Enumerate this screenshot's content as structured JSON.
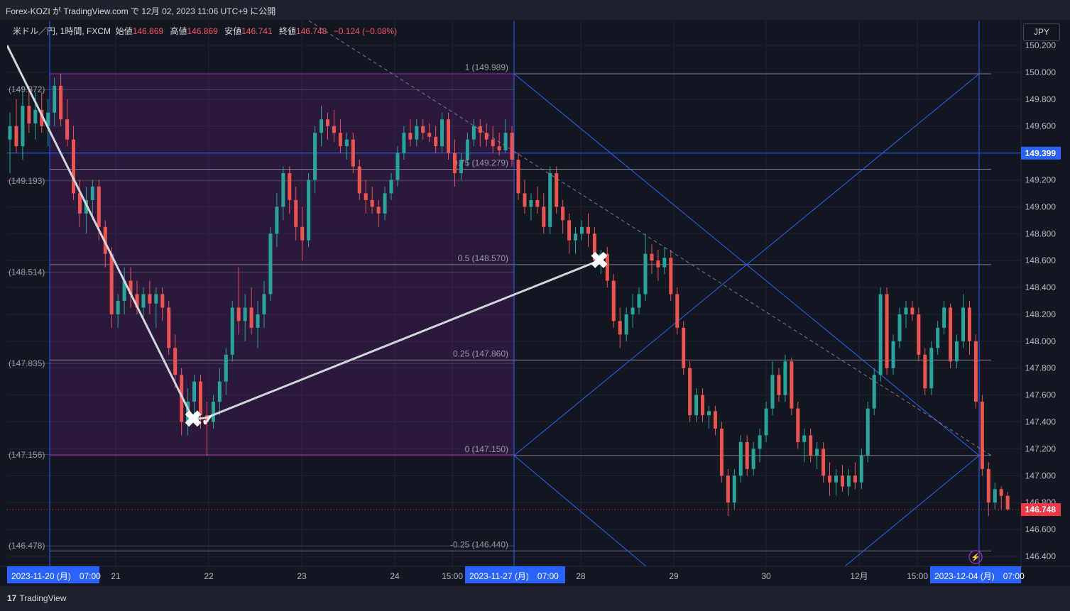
{
  "header": {
    "text": "Forex-KOZI が TradingView.com で 12月 02, 2023 11:06 UTC+9 に公開"
  },
  "legend": {
    "symbol": "米ドル／円, 1時間, FXCM",
    "open_label": "始値",
    "open": "146.869",
    "high_label": "高値",
    "high": "146.869",
    "low_label": "安値",
    "low": "146.741",
    "close_label": "終値",
    "close": "146.748",
    "change": "−0.124 (−0.08%)"
  },
  "currency_button": "JPY",
  "footer": {
    "logo_text": "TradingView"
  },
  "chart_data": {
    "type": "candlestick",
    "symbol": "米ドル／円",
    "interval": "1時間",
    "source": "FXCM",
    "y_axis": {
      "min": 146.4,
      "max": 150.2,
      "ticks": [
        "150.200",
        "150.000",
        "149.800",
        "149.600",
        "149.400",
        "149.200",
        "149.000",
        "148.800",
        "148.600",
        "148.400",
        "148.200",
        "148.000",
        "147.800",
        "147.600",
        "147.400",
        "147.200",
        "147.000",
        "146.800",
        "146.600",
        "146.400"
      ]
    },
    "x_axis": {
      "ticks": [
        "21",
        "22",
        "23",
        "24",
        "15:00",
        "28",
        "29",
        "30",
        "12月",
        "15:00"
      ],
      "highlighted": [
        "2023-11-20 (月)　07:00",
        "2023-11-27 (月)　07:00",
        "2023-12-04 (月)　07:00"
      ]
    },
    "price_tags": [
      {
        "value": 149.399,
        "label": "149.399",
        "color": "#2962ff"
      },
      {
        "value": 146.748,
        "label": "146.748",
        "color": "#f23645"
      }
    ],
    "fib_levels": [
      {
        "ratio": "1",
        "value": 149.989,
        "label": "1 (149.989)"
      },
      {
        "ratio": "0.75",
        "value": 149.279,
        "label": "0.75 (149.279)"
      },
      {
        "ratio": "0.5",
        "value": 148.57,
        "label": "0.5 (148.570)"
      },
      {
        "ratio": "0.25",
        "value": 147.86,
        "label": "0.25 (147.860)"
      },
      {
        "ratio": "0",
        "value": 147.15,
        "label": "0 (147.150)"
      },
      {
        "ratio": "-0.25",
        "value": 146.44,
        "label": "-0.25 (146.440)"
      }
    ],
    "left_levels": [
      {
        "value": 149.872,
        "label": "(149.872)"
      },
      {
        "value": 149.193,
        "label": "(149.193)"
      },
      {
        "value": 148.514,
        "label": "(148.514)"
      },
      {
        "value": 147.835,
        "label": "(147.835)"
      },
      {
        "value": 147.156,
        "label": "(147.156)"
      },
      {
        "value": 146.478,
        "label": "(146.478)"
      }
    ],
    "gann_box": {
      "top": 149.989,
      "bottom": 147.15
    },
    "markers": [
      {
        "symbol": "✖",
        "price": 147.42
      },
      {
        "symbol": "✓",
        "price": 147.43
      },
      {
        "symbol": "✖",
        "price": 148.6
      }
    ],
    "colors": {
      "up": "#26a69a",
      "down": "#ef5350",
      "box": "#9c27b0",
      "gann": "#2962ff",
      "bg": "#131722"
    },
    "candles": [
      {
        "o": 149.5,
        "h": 149.7,
        "l": 149.25,
        "c": 149.6
      },
      {
        "o": 149.6,
        "h": 149.8,
        "l": 149.4,
        "c": 149.45
      },
      {
        "o": 149.45,
        "h": 149.9,
        "l": 149.35,
        "c": 149.75
      },
      {
        "o": 149.75,
        "h": 149.9,
        "l": 149.55,
        "c": 149.62
      },
      {
        "o": 149.62,
        "h": 149.85,
        "l": 149.5,
        "c": 149.72
      },
      {
        "o": 149.72,
        "h": 149.85,
        "l": 149.55,
        "c": 149.6
      },
      {
        "o": 149.6,
        "h": 149.8,
        "l": 149.45,
        "c": 149.7
      },
      {
        "o": 149.7,
        "h": 149.96,
        "l": 149.6,
        "c": 149.9
      },
      {
        "o": 149.9,
        "h": 149.99,
        "l": 149.6,
        "c": 149.65
      },
      {
        "o": 149.65,
        "h": 149.8,
        "l": 149.45,
        "c": 149.5
      },
      {
        "o": 149.5,
        "h": 149.6,
        "l": 149.05,
        "c": 149.1
      },
      {
        "o": 149.1,
        "h": 149.2,
        "l": 148.85,
        "c": 148.95
      },
      {
        "o": 148.95,
        "h": 149.15,
        "l": 148.8,
        "c": 149.05
      },
      {
        "o": 149.05,
        "h": 149.2,
        "l": 148.9,
        "c": 149.15
      },
      {
        "o": 149.15,
        "h": 149.2,
        "l": 148.75,
        "c": 148.85
      },
      {
        "o": 148.85,
        "h": 148.9,
        "l": 148.55,
        "c": 148.65
      },
      {
        "o": 148.65,
        "h": 148.7,
        "l": 148.1,
        "c": 148.2
      },
      {
        "o": 148.2,
        "h": 148.35,
        "l": 148.1,
        "c": 148.3
      },
      {
        "o": 148.3,
        "h": 148.55,
        "l": 148.2,
        "c": 148.45
      },
      {
        "o": 148.45,
        "h": 148.55,
        "l": 148.25,
        "c": 148.35
      },
      {
        "o": 148.35,
        "h": 148.45,
        "l": 148.2,
        "c": 148.25
      },
      {
        "o": 148.25,
        "h": 148.4,
        "l": 148.15,
        "c": 148.35
      },
      {
        "o": 148.35,
        "h": 148.45,
        "l": 148.2,
        "c": 148.28
      },
      {
        "o": 148.28,
        "h": 148.4,
        "l": 148.1,
        "c": 148.35
      },
      {
        "o": 148.35,
        "h": 148.4,
        "l": 148.15,
        "c": 148.25
      },
      {
        "o": 148.25,
        "h": 148.3,
        "l": 147.9,
        "c": 147.95
      },
      {
        "o": 147.95,
        "h": 148.05,
        "l": 147.65,
        "c": 147.75
      },
      {
        "o": 147.75,
        "h": 147.8,
        "l": 147.3,
        "c": 147.4
      },
      {
        "o": 147.4,
        "h": 147.65,
        "l": 147.3,
        "c": 147.55
      },
      {
        "o": 147.55,
        "h": 147.75,
        "l": 147.4,
        "c": 147.7
      },
      {
        "o": 147.7,
        "h": 147.75,
        "l": 147.35,
        "c": 147.45
      },
      {
        "o": 147.45,
        "h": 147.55,
        "l": 147.15,
        "c": 147.4
      },
      {
        "o": 147.4,
        "h": 147.6,
        "l": 147.35,
        "c": 147.55
      },
      {
        "o": 147.55,
        "h": 147.8,
        "l": 147.45,
        "c": 147.7
      },
      {
        "o": 147.7,
        "h": 147.95,
        "l": 147.6,
        "c": 147.9
      },
      {
        "o": 147.9,
        "h": 148.3,
        "l": 147.85,
        "c": 148.25
      },
      {
        "o": 148.25,
        "h": 148.55,
        "l": 148.05,
        "c": 148.15
      },
      {
        "o": 148.15,
        "h": 148.35,
        "l": 148.0,
        "c": 148.25
      },
      {
        "o": 148.25,
        "h": 148.4,
        "l": 148.05,
        "c": 148.1
      },
      {
        "o": 148.1,
        "h": 148.3,
        "l": 147.95,
        "c": 148.2
      },
      {
        "o": 148.2,
        "h": 148.45,
        "l": 148.1,
        "c": 148.35
      },
      {
        "o": 148.35,
        "h": 148.85,
        "l": 148.3,
        "c": 148.8
      },
      {
        "o": 148.8,
        "h": 149.1,
        "l": 148.7,
        "c": 149.0
      },
      {
        "o": 149.0,
        "h": 149.3,
        "l": 148.9,
        "c": 149.25
      },
      {
        "o": 149.25,
        "h": 149.3,
        "l": 148.95,
        "c": 149.05
      },
      {
        "o": 149.05,
        "h": 149.15,
        "l": 148.75,
        "c": 148.85
      },
      {
        "o": 148.85,
        "h": 149.0,
        "l": 148.6,
        "c": 148.75
      },
      {
        "o": 148.75,
        "h": 149.25,
        "l": 148.7,
        "c": 149.2
      },
      {
        "o": 149.2,
        "h": 149.6,
        "l": 149.1,
        "c": 149.55
      },
      {
        "o": 149.55,
        "h": 149.75,
        "l": 149.45,
        "c": 149.65
      },
      {
        "o": 149.65,
        "h": 149.7,
        "l": 149.5,
        "c": 149.6
      },
      {
        "o": 149.6,
        "h": 149.72,
        "l": 149.48,
        "c": 149.55
      },
      {
        "o": 149.55,
        "h": 149.65,
        "l": 149.4,
        "c": 149.45
      },
      {
        "o": 149.45,
        "h": 149.55,
        "l": 149.35,
        "c": 149.5
      },
      {
        "o": 149.5,
        "h": 149.55,
        "l": 149.25,
        "c": 149.3
      },
      {
        "o": 149.3,
        "h": 149.35,
        "l": 149.05,
        "c": 149.1
      },
      {
        "o": 149.1,
        "h": 149.2,
        "l": 148.95,
        "c": 149.05
      },
      {
        "o": 149.05,
        "h": 149.15,
        "l": 148.95,
        "c": 149.0
      },
      {
        "o": 149.0,
        "h": 149.05,
        "l": 148.85,
        "c": 148.95
      },
      {
        "o": 148.95,
        "h": 149.15,
        "l": 148.9,
        "c": 149.1
      },
      {
        "o": 149.1,
        "h": 149.25,
        "l": 149.05,
        "c": 149.2
      },
      {
        "o": 149.2,
        "h": 149.45,
        "l": 149.15,
        "c": 149.4
      },
      {
        "o": 149.4,
        "h": 149.6,
        "l": 149.35,
        "c": 149.55
      },
      {
        "o": 149.55,
        "h": 149.65,
        "l": 149.45,
        "c": 149.5
      },
      {
        "o": 149.5,
        "h": 149.65,
        "l": 149.45,
        "c": 149.6
      },
      {
        "o": 149.6,
        "h": 149.65,
        "l": 149.5,
        "c": 149.55
      },
      {
        "o": 149.55,
        "h": 149.62,
        "l": 149.48,
        "c": 149.52
      },
      {
        "o": 149.52,
        "h": 149.6,
        "l": 149.4,
        "c": 149.45
      },
      {
        "o": 149.45,
        "h": 149.7,
        "l": 149.4,
        "c": 149.65
      },
      {
        "o": 149.65,
        "h": 149.7,
        "l": 149.35,
        "c": 149.4
      },
      {
        "o": 149.4,
        "h": 149.5,
        "l": 149.15,
        "c": 149.25
      },
      {
        "o": 149.25,
        "h": 149.4,
        "l": 149.2,
        "c": 149.35
      },
      {
        "o": 149.35,
        "h": 149.55,
        "l": 149.3,
        "c": 149.5
      },
      {
        "o": 149.5,
        "h": 149.65,
        "l": 149.45,
        "c": 149.6
      },
      {
        "o": 149.6,
        "h": 149.65,
        "l": 149.45,
        "c": 149.55
      },
      {
        "o": 149.55,
        "h": 149.62,
        "l": 149.45,
        "c": 149.5
      },
      {
        "o": 149.5,
        "h": 149.6,
        "l": 149.4,
        "c": 149.45
      },
      {
        "o": 149.45,
        "h": 149.55,
        "l": 149.38,
        "c": 149.42
      },
      {
        "o": 149.42,
        "h": 149.65,
        "l": 149.4,
        "c": 149.55
      },
      {
        "o": 149.55,
        "h": 149.6,
        "l": 149.3,
        "c": 149.35
      },
      {
        "o": 149.35,
        "h": 149.4,
        "l": 149.05,
        "c": 149.1
      },
      {
        "o": 149.1,
        "h": 149.2,
        "l": 148.95,
        "c": 149.0
      },
      {
        "o": 149.0,
        "h": 149.1,
        "l": 148.9,
        "c": 149.05
      },
      {
        "o": 149.05,
        "h": 149.15,
        "l": 148.95,
        "c": 149.0
      },
      {
        "o": 149.0,
        "h": 149.1,
        "l": 148.8,
        "c": 148.85
      },
      {
        "o": 148.85,
        "h": 149.3,
        "l": 148.8,
        "c": 149.25
      },
      {
        "o": 149.25,
        "h": 149.3,
        "l": 148.95,
        "c": 149.0
      },
      {
        "o": 149.0,
        "h": 149.05,
        "l": 148.8,
        "c": 148.9
      },
      {
        "o": 148.9,
        "h": 148.95,
        "l": 148.65,
        "c": 148.75
      },
      {
        "o": 148.75,
        "h": 148.85,
        "l": 148.65,
        "c": 148.8
      },
      {
        "o": 148.8,
        "h": 148.9,
        "l": 148.75,
        "c": 148.85
      },
      {
        "o": 148.85,
        "h": 148.95,
        "l": 148.7,
        "c": 148.8
      },
      {
        "o": 148.8,
        "h": 148.85,
        "l": 148.55,
        "c": 148.6
      },
      {
        "o": 148.6,
        "h": 148.68,
        "l": 148.5,
        "c": 148.65
      },
      {
        "o": 148.65,
        "h": 148.7,
        "l": 148.4,
        "c": 148.45
      },
      {
        "o": 148.45,
        "h": 148.5,
        "l": 148.1,
        "c": 148.15
      },
      {
        "o": 148.15,
        "h": 148.25,
        "l": 147.95,
        "c": 148.05
      },
      {
        "o": 148.05,
        "h": 148.25,
        "l": 148.0,
        "c": 148.2
      },
      {
        "o": 148.2,
        "h": 148.35,
        "l": 148.1,
        "c": 148.25
      },
      {
        "o": 148.25,
        "h": 148.4,
        "l": 148.2,
        "c": 148.35
      },
      {
        "o": 148.35,
        "h": 148.8,
        "l": 148.3,
        "c": 148.65
      },
      {
        "o": 148.65,
        "h": 148.72,
        "l": 148.5,
        "c": 148.6
      },
      {
        "o": 148.6,
        "h": 148.68,
        "l": 148.45,
        "c": 148.55
      },
      {
        "o": 148.55,
        "h": 148.7,
        "l": 148.5,
        "c": 148.62
      },
      {
        "o": 148.62,
        "h": 148.68,
        "l": 148.3,
        "c": 148.35
      },
      {
        "o": 148.35,
        "h": 148.4,
        "l": 148.05,
        "c": 148.1
      },
      {
        "o": 148.1,
        "h": 148.15,
        "l": 147.75,
        "c": 147.8
      },
      {
        "o": 147.8,
        "h": 147.85,
        "l": 147.4,
        "c": 147.45
      },
      {
        "o": 147.45,
        "h": 147.65,
        "l": 147.4,
        "c": 147.6
      },
      {
        "o": 147.6,
        "h": 147.65,
        "l": 147.4,
        "c": 147.45
      },
      {
        "o": 147.45,
        "h": 147.52,
        "l": 147.35,
        "c": 147.48
      },
      {
        "o": 147.48,
        "h": 147.52,
        "l": 147.3,
        "c": 147.35
      },
      {
        "o": 147.35,
        "h": 147.4,
        "l": 146.95,
        "c": 147.0
      },
      {
        "o": 147.0,
        "h": 147.05,
        "l": 146.7,
        "c": 146.8
      },
      {
        "o": 146.8,
        "h": 147.05,
        "l": 146.75,
        "c": 147.0
      },
      {
        "o": 147.0,
        "h": 147.3,
        "l": 146.95,
        "c": 147.25
      },
      {
        "o": 147.25,
        "h": 147.3,
        "l": 147.0,
        "c": 147.05
      },
      {
        "o": 147.05,
        "h": 147.25,
        "l": 147.0,
        "c": 147.2
      },
      {
        "o": 147.2,
        "h": 147.35,
        "l": 147.1,
        "c": 147.3
      },
      {
        "o": 147.3,
        "h": 147.55,
        "l": 147.25,
        "c": 147.5
      },
      {
        "o": 147.5,
        "h": 147.85,
        "l": 147.45,
        "c": 147.75
      },
      {
        "o": 147.75,
        "h": 147.8,
        "l": 147.55,
        "c": 147.6
      },
      {
        "o": 147.6,
        "h": 147.9,
        "l": 147.55,
        "c": 147.85
      },
      {
        "o": 147.85,
        "h": 147.88,
        "l": 147.45,
        "c": 147.5
      },
      {
        "o": 147.5,
        "h": 147.55,
        "l": 147.2,
        "c": 147.25
      },
      {
        "o": 147.25,
        "h": 147.35,
        "l": 147.1,
        "c": 147.3
      },
      {
        "o": 147.3,
        "h": 147.35,
        "l": 147.1,
        "c": 147.15
      },
      {
        "o": 147.15,
        "h": 147.25,
        "l": 147.05,
        "c": 147.2
      },
      {
        "o": 147.2,
        "h": 147.25,
        "l": 146.95,
        "c": 147.0
      },
      {
        "o": 147.0,
        "h": 147.1,
        "l": 146.85,
        "c": 146.95
      },
      {
        "o": 146.95,
        "h": 147.05,
        "l": 146.85,
        "c": 147.0
      },
      {
        "o": 147.0,
        "h": 147.08,
        "l": 146.88,
        "c": 146.92
      },
      {
        "o": 146.92,
        "h": 147.05,
        "l": 146.85,
        "c": 147.0
      },
      {
        "o": 147.0,
        "h": 147.1,
        "l": 146.9,
        "c": 146.95
      },
      {
        "o": 146.95,
        "h": 147.2,
        "l": 146.9,
        "c": 147.15
      },
      {
        "o": 147.15,
        "h": 147.55,
        "l": 147.1,
        "c": 147.5
      },
      {
        "o": 147.5,
        "h": 147.8,
        "l": 147.45,
        "c": 147.75
      },
      {
        "o": 147.75,
        "h": 148.4,
        "l": 147.7,
        "c": 148.35
      },
      {
        "o": 148.35,
        "h": 148.4,
        "l": 147.75,
        "c": 147.8
      },
      {
        "o": 147.8,
        "h": 148.05,
        "l": 147.75,
        "c": 148.0
      },
      {
        "o": 148.0,
        "h": 148.25,
        "l": 147.95,
        "c": 148.2
      },
      {
        "o": 148.2,
        "h": 148.3,
        "l": 148.1,
        "c": 148.25
      },
      {
        "o": 148.25,
        "h": 148.3,
        "l": 148.15,
        "c": 148.2
      },
      {
        "o": 148.2,
        "h": 148.25,
        "l": 147.85,
        "c": 147.9
      },
      {
        "o": 147.9,
        "h": 147.95,
        "l": 147.6,
        "c": 147.65
      },
      {
        "o": 147.65,
        "h": 148.0,
        "l": 147.6,
        "c": 147.95
      },
      {
        "o": 147.95,
        "h": 148.15,
        "l": 147.9,
        "c": 148.1
      },
      {
        "o": 148.1,
        "h": 148.3,
        "l": 148.05,
        "c": 148.25
      },
      {
        "o": 148.25,
        "h": 148.28,
        "l": 147.8,
        "c": 147.85
      },
      {
        "o": 147.85,
        "h": 148.05,
        "l": 147.8,
        "c": 148.0
      },
      {
        "o": 148.0,
        "h": 148.35,
        "l": 147.95,
        "c": 148.25
      },
      {
        "o": 148.25,
        "h": 148.3,
        "l": 147.9,
        "c": 148.0
      },
      {
        "o": 148.0,
        "h": 148.05,
        "l": 147.5,
        "c": 147.55
      },
      {
        "o": 147.55,
        "h": 147.6,
        "l": 147.0,
        "c": 147.05
      },
      {
        "o": 147.05,
        "h": 147.1,
        "l": 146.7,
        "c": 146.8
      },
      {
        "o": 146.8,
        "h": 146.95,
        "l": 146.75,
        "c": 146.9
      },
      {
        "o": 146.9,
        "h": 146.92,
        "l": 146.75,
        "c": 146.85
      },
      {
        "o": 146.85,
        "h": 146.88,
        "l": 146.74,
        "c": 146.75
      }
    ]
  }
}
